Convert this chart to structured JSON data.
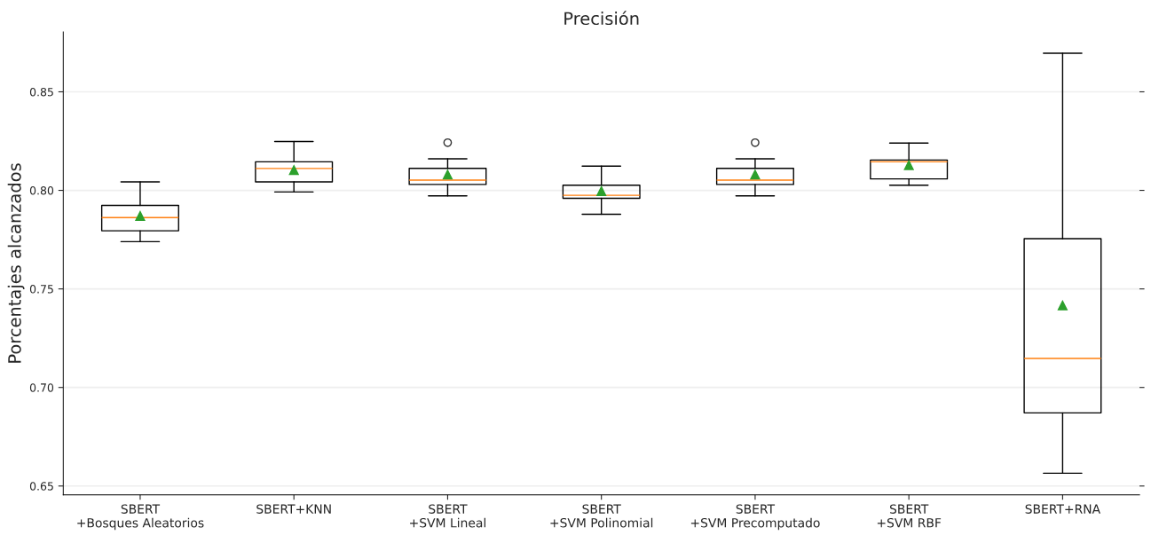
{
  "chart_data": {
    "type": "box",
    "title": "Precisión",
    "ylabel": "Porcentajes alcanzados",
    "categories": [
      "SBERT\n+Bosques Aleatorios",
      "SBERT+KNN",
      "SBERT\n+SVM Lineal",
      "SBERT\n+SVM Polinomial",
      "SBERT\n+SVM Precomputado",
      "SBERT\n+SVM RBF",
      "SBERT+RNA"
    ],
    "boxes": [
      {
        "low": 0.774,
        "q1": 0.7795,
        "median": 0.7862,
        "q3": 0.7924,
        "high": 0.8043,
        "mean": 0.787
      },
      {
        "low": 0.7992,
        "q1": 0.8043,
        "median": 0.8111,
        "q3": 0.8145,
        "high": 0.8248,
        "mean": 0.8103
      },
      {
        "low": 0.7972,
        "q1": 0.803,
        "median": 0.8052,
        "q3": 0.8112,
        "high": 0.816,
        "mean": 0.808,
        "outliers": [
          0.8242
        ]
      },
      {
        "low": 0.7879,
        "q1": 0.796,
        "median": 0.7975,
        "q3": 0.8026,
        "high": 0.8123,
        "mean": 0.7996
      },
      {
        "low": 0.7972,
        "q1": 0.803,
        "median": 0.8052,
        "q3": 0.8112,
        "high": 0.816,
        "mean": 0.808,
        "outliers": [
          0.8242
        ]
      },
      {
        "low": 0.8026,
        "q1": 0.8058,
        "median": 0.8145,
        "q3": 0.8154,
        "high": 0.824,
        "mean": 0.8128
      },
      {
        "low": 0.6565,
        "q1": 0.6871,
        "median": 0.7147,
        "q3": 0.7755,
        "high": 0.8696,
        "mean": 0.7416
      }
    ],
    "ylim": [
      0.6455,
      0.8803
    ],
    "yticks": [
      {
        "value": 0.65,
        "label": "0.65"
      },
      {
        "value": 0.7,
        "label": "0.70"
      },
      {
        "value": 0.75,
        "label": "0.75"
      },
      {
        "value": 0.8,
        "label": "0.80"
      },
      {
        "value": 0.85,
        "label": "0.85"
      }
    ],
    "grid": "y"
  }
}
